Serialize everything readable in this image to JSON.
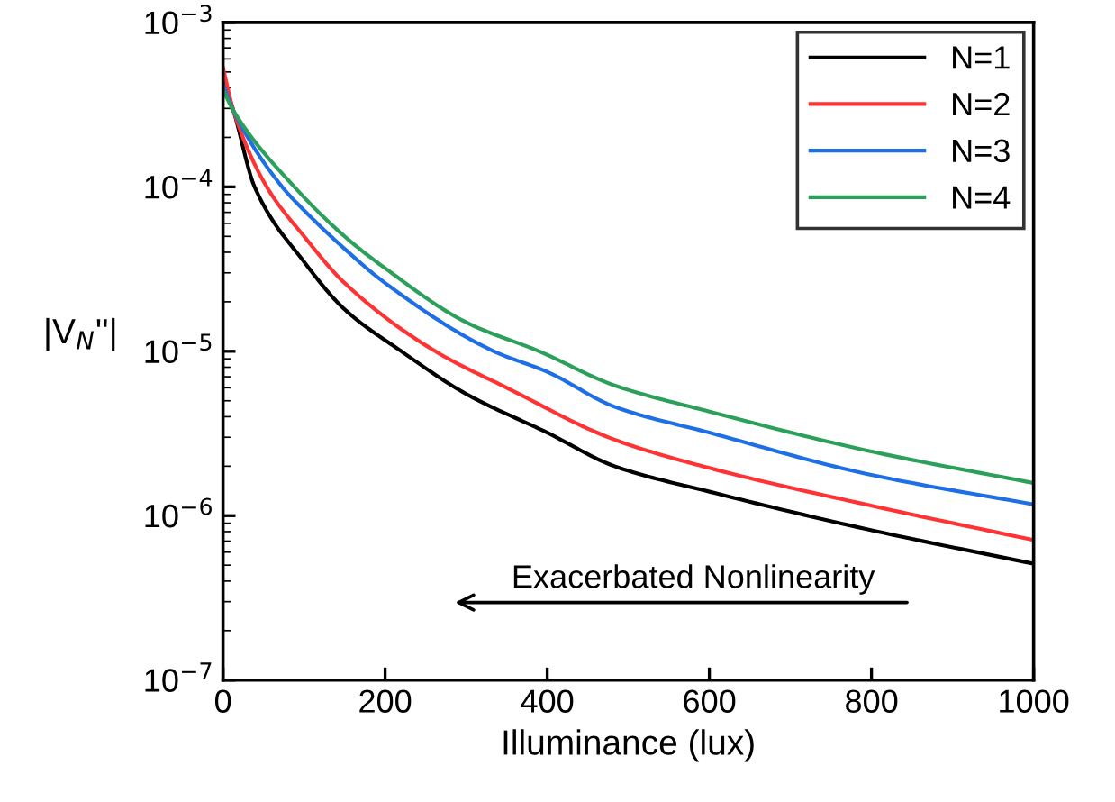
{
  "chart_data": {
    "type": "line",
    "xlabel": "Illuminance (lux)",
    "ylabel": "|V$_{N}$''|",
    "log": "y",
    "xlim": [
      0,
      1000
    ],
    "xticks": [
      0,
      200,
      400,
      600,
      800,
      1000
    ],
    "ylim": [
      1e-07,
      0.001
    ],
    "yticks": [
      {
        "value": 1e-07,
        "label": "10$^{−7}$"
      },
      {
        "value": 1e-06,
        "label": "10$^{−6}$"
      },
      {
        "value": 1e-05,
        "label": "10$^{−5}$"
      },
      {
        "value": 0.0001,
        "label": "10$^{−4}$"
      },
      {
        "value": 0.001,
        "label": "10$^{−3}$"
      }
    ],
    "grid": false,
    "legend": "top right",
    "marker": "none",
    "line_style": "solid",
    "annotations": [
      "Exacerbated Nonlinearity"
    ],
    "series": [
      {
        "name": "N=1",
        "color": "#000000",
        "x": [
          0,
          13,
          39,
          100,
          150,
          220,
          300,
          400,
          483,
          600,
          793,
          1000
        ],
        "values": [
          0.00045,
          0.00029,
          0.0001,
          3.5e-05,
          1.8e-05,
          1e-05,
          5.5e-06,
          3.2e-06,
          2e-06,
          1.4e-06,
          8.3e-07,
          5.1e-07
        ]
      },
      {
        "name": "N=2",
        "color": "#ff3333",
        "x": [
          0,
          13,
          54,
          100,
          150,
          262,
          350,
          483,
          600,
          793,
          1000
        ],
        "values": [
          0.00053,
          0.00029,
          0.0001,
          5e-05,
          2.6e-05,
          1e-05,
          6e-06,
          2.9e-06,
          1.95e-06,
          1.17e-06,
          7.1e-07
        ]
      },
      {
        "name": "N=3",
        "color": "#1e6fe6",
        "x": [
          0,
          13,
          73,
          100,
          150,
          200,
          334,
          400,
          483,
          600,
          793,
          1000
        ],
        "values": [
          0.00042,
          0.00029,
          0.0001,
          7.2e-05,
          4.2e-05,
          2.6e-05,
          1e-05,
          7.5e-06,
          4.6e-06,
          3.2e-06,
          1.8e-06,
          1.17e-06
        ]
      },
      {
        "name": "N=4",
        "color": "#2ca05a",
        "x": [
          0,
          13,
          88,
          150,
          200,
          300,
          390,
          483,
          600,
          793,
          1000
        ],
        "values": [
          0.00039,
          0.00029,
          0.0001,
          5e-05,
          3.2e-05,
          1.5e-05,
          1e-05,
          6.2e-06,
          4.3e-06,
          2.5e-06,
          1.58e-06
        ]
      }
    ]
  }
}
